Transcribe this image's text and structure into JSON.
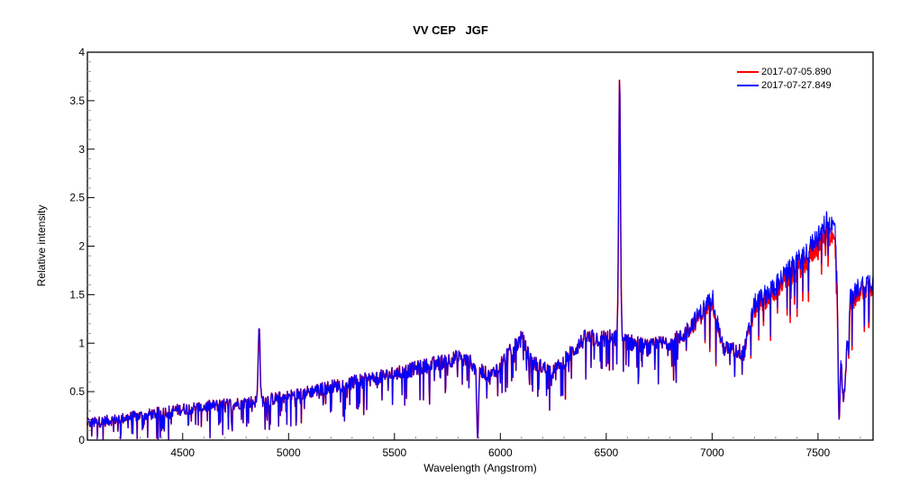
{
  "chart": {
    "title": "VV CEP   JGF",
    "xlabel": "Wavelength (Angstrom)",
    "ylabel": "Relative intensity"
  },
  "legend": {
    "items": [
      {
        "label": "2017-07-05.890",
        "color": "#ff0000"
      },
      {
        "label": "2017-07-27.849",
        "color": "#0000ff"
      }
    ]
  },
  "chart_data": {
    "type": "line",
    "title": "VV CEP   JGF",
    "xlabel": "Wavelength (Angstrom)",
    "ylabel": "Relative intensity",
    "xlim": [
      4050,
      7760
    ],
    "ylim": [
      0,
      4
    ],
    "x_ticks": [
      4500,
      5000,
      5500,
      6000,
      6500,
      7000,
      7500
    ],
    "y_ticks": [
      0,
      0.5,
      1,
      1.5,
      2,
      2.5,
      3,
      3.5,
      4
    ],
    "y_tick_labels": [
      "0",
      "0.5",
      "1",
      "1.5",
      "2",
      "2.5",
      "3",
      "3.5",
      "4"
    ],
    "grid": false,
    "legend_position": "upper right",
    "series": [
      {
        "name": "2017-07-05.890",
        "color": "#ff0000",
        "continuum_x": [
          4050,
          4300,
          4500,
          4850,
          5000,
          5200,
          5500,
          5800,
          5880,
          5950,
          6100,
          6150,
          6250,
          6400,
          6550,
          6700,
          6850,
          6950,
          7000,
          7050,
          7150,
          7200,
          7300,
          7450,
          7540,
          7580,
          7620,
          7650,
          7700,
          7760
        ],
        "continuum_y": [
          0.17,
          0.25,
          0.32,
          0.4,
          0.45,
          0.55,
          0.68,
          0.85,
          0.78,
          0.65,
          1.05,
          0.8,
          0.7,
          1.05,
          1.05,
          0.95,
          1.05,
          1.3,
          1.45,
          0.95,
          0.9,
          1.35,
          1.55,
          1.85,
          2.15,
          2.05,
          0.35,
          1.4,
          1.55,
          1.6
        ]
      },
      {
        "name": "2017-07-27.849",
        "color": "#0000ff",
        "continuum_x": [
          4050,
          4300,
          4500,
          4850,
          5000,
          5200,
          5500,
          5800,
          5880,
          5950,
          6100,
          6150,
          6250,
          6400,
          6550,
          6700,
          6850,
          6950,
          7000,
          7050,
          7150,
          7200,
          7300,
          7450,
          7540,
          7580,
          7620,
          7650,
          7700,
          7760
        ],
        "continuum_y": [
          0.17,
          0.25,
          0.32,
          0.4,
          0.45,
          0.55,
          0.68,
          0.85,
          0.78,
          0.65,
          1.05,
          0.8,
          0.7,
          1.05,
          1.05,
          0.95,
          1.05,
          1.32,
          1.5,
          0.95,
          0.9,
          1.4,
          1.6,
          1.95,
          2.25,
          2.2,
          0.35,
          1.45,
          1.6,
          1.65
        ]
      }
    ],
    "features": [
      {
        "label": "H-beta emission",
        "x": 4861,
        "y": 1.17
      },
      {
        "label": "Na D absorption",
        "x": 5893,
        "y": 0.02
      },
      {
        "label": "H-alpha emission",
        "x": 6563,
        "y": 3.73
      },
      {
        "label": "O2 A-band absorption",
        "x": 7600,
        "y": 0.2
      }
    ]
  }
}
